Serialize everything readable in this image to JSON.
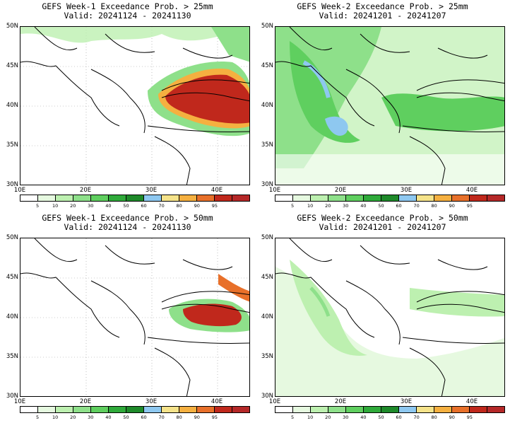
{
  "panels": [
    {
      "title": "GEFS Week-1 Exceedance Prob. > 25mm",
      "valid": "Valid: 20241124 - 20241130"
    },
    {
      "title": "GEFS Week-2 Exceedance Prob. > 25mm",
      "valid": "Valid: 20241201 - 20241207"
    },
    {
      "title": "GEFS Week-1 Exceedance Prob. > 50mm",
      "valid": "Valid: 20241124 - 20241130"
    },
    {
      "title": "GEFS Week-2 Exceedance Prob. > 50mm",
      "valid": "Valid: 20241201 - 20241207"
    }
  ],
  "lat_labels": [
    "50N",
    "45N",
    "40N",
    "35N",
    "30N"
  ],
  "lon_labels": [
    "10E",
    "20E",
    "30E",
    "40E"
  ],
  "colorbar": {
    "labels": [
      "5",
      "10",
      "20",
      "30",
      "40",
      "50",
      "60",
      "70",
      "80",
      "90",
      "95"
    ],
    "colors": [
      "#ffffff",
      "#e6f9e0",
      "#bdf0b0",
      "#8ee08a",
      "#5fcf5f",
      "#2faa3a",
      "#1e8a2a",
      "#8ec8f0",
      "#f5e38a",
      "#f5b040",
      "#e8702a",
      "#c0281c",
      "#b52828"
    ]
  }
}
